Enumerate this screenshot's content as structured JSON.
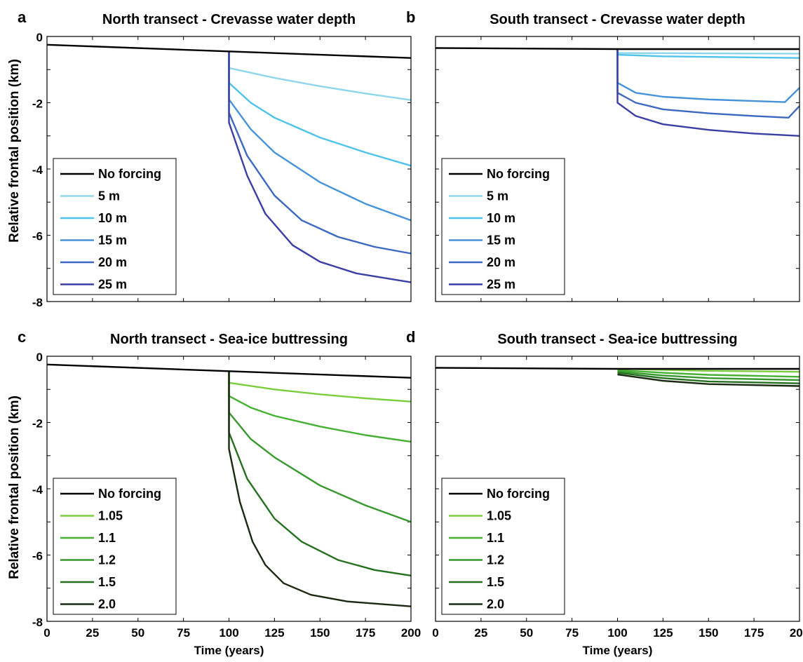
{
  "figure": {
    "ylabel": "Relative frontal position (km)",
    "xlabel": "Time (years)"
  },
  "chart_data": [
    {
      "panel": "a",
      "type": "line",
      "title": "North transect - Crevasse water depth",
      "xlabel": "",
      "ylabel": "Relative frontal position (km)",
      "xlim": [
        0,
        200
      ],
      "ylim": [
        -8,
        0
      ],
      "xticks": [],
      "yticks": [
        0,
        -2,
        -4,
        -6,
        -8
      ],
      "legend_position": "bottom-left",
      "series": [
        {
          "name": "No forcing",
          "color": "#000000",
          "x": [
            0,
            100,
            200
          ],
          "y": [
            -0.25,
            -0.45,
            -0.65
          ]
        },
        {
          "name": "5 m",
          "color": "#8fd6ec",
          "x": [
            100,
            100,
            125,
            150,
            175,
            200
          ],
          "y": [
            -0.45,
            -0.95,
            -1.25,
            -1.5,
            -1.72,
            -1.92
          ]
        },
        {
          "name": "10 m",
          "color": "#4dc3eb",
          "x": [
            100,
            100,
            112,
            125,
            150,
            175,
            200
          ],
          "y": [
            -0.45,
            -1.4,
            -2.0,
            -2.45,
            -3.05,
            -3.5,
            -3.9
          ]
        },
        {
          "name": "15 m",
          "color": "#4692d8",
          "x": [
            100,
            100,
            112,
            125,
            150,
            175,
            200
          ],
          "y": [
            -0.45,
            -1.9,
            -2.8,
            -3.5,
            -4.4,
            -5.05,
            -5.55
          ]
        },
        {
          "name": "20 m",
          "color": "#3c68c2",
          "x": [
            100,
            100,
            110,
            125,
            140,
            160,
            180,
            200
          ],
          "y": [
            -0.45,
            -2.3,
            -3.6,
            -4.8,
            -5.55,
            -6.05,
            -6.35,
            -6.55
          ]
        },
        {
          "name": "25 m",
          "color": "#3a3fa5",
          "x": [
            100,
            100,
            110,
            120,
            135,
            150,
            170,
            200
          ],
          "y": [
            -0.45,
            -2.6,
            -4.2,
            -5.35,
            -6.3,
            -6.8,
            -7.15,
            -7.42
          ]
        }
      ]
    },
    {
      "panel": "b",
      "type": "line",
      "title": "South transect - Crevasse water depth",
      "xlabel": "",
      "ylabel": "",
      "xlim": [
        0,
        200
      ],
      "ylim": [
        -8,
        0
      ],
      "xticks": [],
      "yticks": [],
      "legend_position": "bottom-left",
      "series": [
        {
          "name": "No forcing",
          "color": "#000000",
          "x": [
            0,
            100,
            200
          ],
          "y": [
            -0.35,
            -0.38,
            -0.38
          ]
        },
        {
          "name": "5 m",
          "color": "#8fd6ec",
          "x": [
            100,
            100,
            200
          ],
          "y": [
            -0.38,
            -0.5,
            -0.52
          ]
        },
        {
          "name": "10 m",
          "color": "#4dc3eb",
          "x": [
            100,
            100,
            125,
            200
          ],
          "y": [
            -0.38,
            -0.55,
            -0.6,
            -0.65
          ]
        },
        {
          "name": "15 m",
          "color": "#4692d8",
          "x": [
            100,
            100,
            110,
            125,
            150,
            175,
            192,
            200
          ],
          "y": [
            -0.38,
            -1.4,
            -1.7,
            -1.82,
            -1.9,
            -1.95,
            -1.98,
            -1.55
          ]
        },
        {
          "name": "20 m",
          "color": "#3c68c2",
          "x": [
            100,
            100,
            110,
            125,
            150,
            175,
            194,
            200
          ],
          "y": [
            -0.38,
            -1.7,
            -2.0,
            -2.2,
            -2.32,
            -2.4,
            -2.45,
            -2.1
          ]
        },
        {
          "name": "25 m",
          "color": "#3a3fa5",
          "x": [
            100,
            100,
            110,
            125,
            150,
            175,
            200
          ],
          "y": [
            -0.38,
            -2.0,
            -2.4,
            -2.65,
            -2.82,
            -2.93,
            -3.0
          ]
        }
      ]
    },
    {
      "panel": "c",
      "type": "line",
      "title": "North transect - Sea-ice buttressing",
      "xlabel": "Time (years)",
      "ylabel": "Relative frontal position (km)",
      "xlim": [
        0,
        200
      ],
      "ylim": [
        -8,
        0
      ],
      "xticks": [
        0,
        25,
        50,
        75,
        100,
        125,
        150,
        175,
        200
      ],
      "yticks": [
        0,
        -2,
        -4,
        -6,
        -8
      ],
      "legend_position": "bottom-left",
      "series": [
        {
          "name": "No forcing",
          "color": "#000000",
          "x": [
            0,
            100,
            200
          ],
          "y": [
            -0.25,
            -0.45,
            -0.65
          ]
        },
        {
          "name": "1.05",
          "color": "#7ccd3c",
          "x": [
            100,
            100,
            125,
            150,
            175,
            200
          ],
          "y": [
            -0.45,
            -0.8,
            -1.0,
            -1.15,
            -1.27,
            -1.37
          ]
        },
        {
          "name": "1.1",
          "color": "#45b133",
          "x": [
            100,
            100,
            112,
            125,
            150,
            175,
            200
          ],
          "y": [
            -0.45,
            -1.2,
            -1.55,
            -1.8,
            -2.12,
            -2.38,
            -2.58
          ]
        },
        {
          "name": "1.2",
          "color": "#37982e",
          "x": [
            100,
            100,
            112,
            125,
            150,
            175,
            200
          ],
          "y": [
            -0.45,
            -1.7,
            -2.5,
            -3.05,
            -3.9,
            -4.5,
            -5.0
          ]
        },
        {
          "name": "1.5",
          "color": "#24701f",
          "x": [
            100,
            100,
            110,
            125,
            140,
            160,
            180,
            200
          ],
          "y": [
            -0.45,
            -2.3,
            -3.7,
            -4.9,
            -5.6,
            -6.15,
            -6.45,
            -6.62
          ]
        },
        {
          "name": "2.0",
          "color": "#1a2a12",
          "x": [
            100,
            100,
            106,
            113,
            120,
            130,
            145,
            165,
            200
          ],
          "y": [
            -0.45,
            -2.8,
            -4.4,
            -5.6,
            -6.3,
            -6.85,
            -7.2,
            -7.4,
            -7.55
          ]
        }
      ]
    },
    {
      "panel": "d",
      "type": "line",
      "title": "South transect - Sea-ice buttressing",
      "xlabel": "Time (years)",
      "ylabel": "",
      "xlim": [
        0,
        200
      ],
      "ylim": [
        -8,
        0
      ],
      "xticks": [
        0,
        25,
        50,
        75,
        100,
        125,
        150,
        175,
        200
      ],
      "yticks": [],
      "legend_position": "bottom-left",
      "series": [
        {
          "name": "No forcing",
          "color": "#000000",
          "x": [
            0,
            100,
            200
          ],
          "y": [
            -0.35,
            -0.38,
            -0.38
          ]
        },
        {
          "name": "1.05",
          "color": "#7ccd3c",
          "x": [
            100,
            125,
            150,
            200
          ],
          "y": [
            -0.38,
            -0.41,
            -0.44,
            -0.47
          ]
        },
        {
          "name": "1.1",
          "color": "#45b133",
          "x": [
            100,
            125,
            150,
            200
          ],
          "y": [
            -0.42,
            -0.5,
            -0.56,
            -0.62
          ]
        },
        {
          "name": "1.2",
          "color": "#37982e",
          "x": [
            100,
            125,
            150,
            200
          ],
          "y": [
            -0.46,
            -0.58,
            -0.66,
            -0.72
          ]
        },
        {
          "name": "1.5",
          "color": "#24701f",
          "x": [
            100,
            125,
            150,
            200
          ],
          "y": [
            -0.5,
            -0.66,
            -0.76,
            -0.82
          ]
        },
        {
          "name": "2.0",
          "color": "#1a2a12",
          "x": [
            100,
            125,
            150,
            200
          ],
          "y": [
            -0.55,
            -0.74,
            -0.84,
            -0.9
          ]
        }
      ]
    }
  ]
}
